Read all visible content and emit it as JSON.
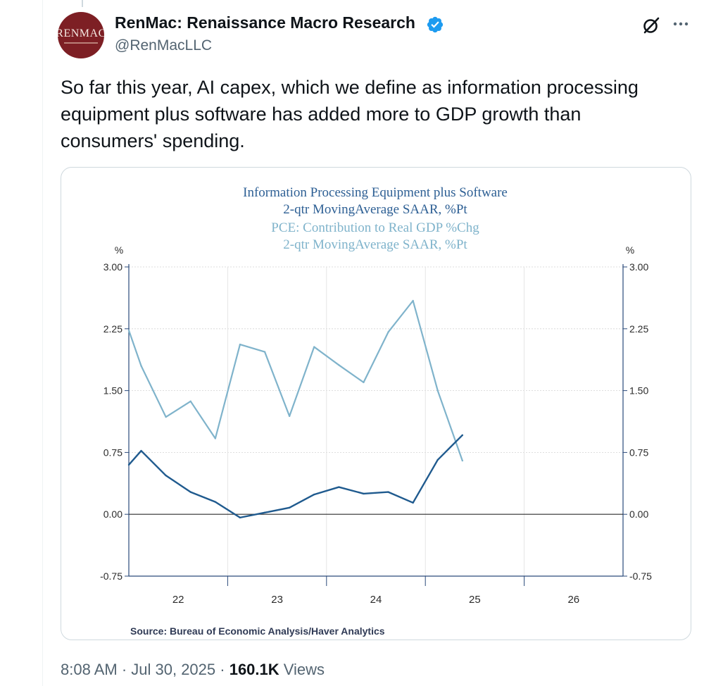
{
  "tweet": {
    "author": {
      "display_name": "RenMac: Renaissance Macro Research",
      "handle": "@RenMacLLC",
      "avatar_text": "RENMAC",
      "verified_color": "#1d9bf0"
    },
    "text": "So far this year, AI capex, which we define as information processing equipment plus software has added more to GDP growth than consumers' spending.",
    "timestamp": "8:08 AM · Jul 30, 2025",
    "separator": " · ",
    "views_count": "160.1K",
    "views_label": " Views"
  },
  "icons": {
    "grok": "grok-icon",
    "more": "more-horizontal-icon",
    "verified": "verified-badge-icon"
  },
  "colors": {
    "dark_series": "#1f5a8e",
    "light_series": "#7fb3cb",
    "zero_line": "#2b2b2b"
  },
  "chart_data": {
    "type": "line",
    "title_lines": [
      "Information Processing Equipment plus Software",
      "2-qtr MovingAverage        SAAR, %Pt"
    ],
    "subtitle_lines": [
      "PCE: Contribution to Real GDP %Chg",
      "2-qtr MovingAverage      SAAR, %Pt"
    ],
    "ylabel_left": "%",
    "ylabel_right": "%",
    "ylim": [
      -0.75,
      3.0
    ],
    "yticks": [
      "3.00",
      "2.25",
      "1.50",
      "0.75",
      "0.00",
      "-0.75"
    ],
    "ytick_values": [
      3.0,
      2.25,
      1.5,
      0.75,
      0.0,
      -0.75
    ],
    "xlim": [
      2022.0,
      2027.0
    ],
    "xtick_labels": [
      "22",
      "23",
      "24",
      "25",
      "26"
    ],
    "xtick_label_values": [
      2022.5,
      2023.5,
      2024.5,
      2025.5,
      2026.5
    ],
    "year_boundaries": [
      2023,
      2024,
      2025,
      2026
    ],
    "source": "Source:  Bureau of Economic Analysis/Haver Analytics",
    "series": [
      {
        "name": "Information Processing Equipment plus Software",
        "color": "#1f5a8e",
        "x": [
          2022.0,
          2022.125,
          2022.375,
          2022.625,
          2022.875,
          2023.125,
          2023.375,
          2023.625,
          2023.875,
          2024.125,
          2024.375,
          2024.625,
          2024.875,
          2025.125,
          2025.375
        ],
        "values": [
          0.6,
          0.77,
          0.47,
          0.27,
          0.15,
          -0.04,
          0.02,
          0.08,
          0.24,
          0.33,
          0.25,
          0.27,
          0.14,
          0.66,
          0.96
        ]
      },
      {
        "name": "PCE: Contribution to Real GDP %Chg",
        "color": "#7fb3cb",
        "x": [
          2022.0,
          2022.125,
          2022.375,
          2022.625,
          2022.875,
          2023.125,
          2023.375,
          2023.625,
          2023.875,
          2024.125,
          2024.375,
          2024.625,
          2024.875,
          2025.125,
          2025.375
        ],
        "values": [
          2.23,
          1.8,
          1.18,
          1.37,
          0.92,
          2.06,
          1.97,
          1.19,
          2.03,
          1.81,
          1.6,
          2.21,
          2.59,
          1.5,
          0.65
        ]
      }
    ]
  }
}
